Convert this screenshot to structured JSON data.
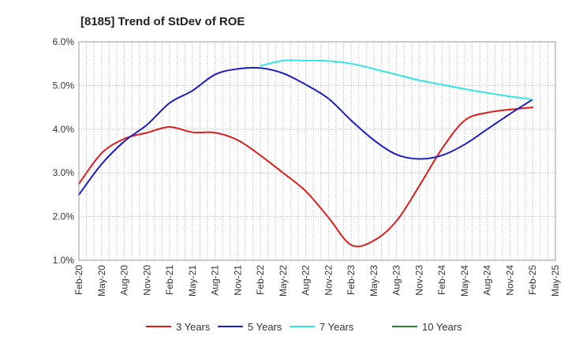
{
  "chart_data": {
    "type": "line",
    "title": "[8185]  Trend of StDev of ROE",
    "xlabel": "",
    "ylabel": "",
    "ylim": [
      1.0,
      6.0
    ],
    "y_ticks": [
      "1.0%",
      "2.0%",
      "3.0%",
      "4.0%",
      "5.0%",
      "6.0%"
    ],
    "x_ticks": [
      "Feb-20",
      "May-20",
      "Aug-20",
      "Nov-20",
      "Feb-21",
      "May-21",
      "Aug-21",
      "Nov-21",
      "Feb-22",
      "May-22",
      "Aug-22",
      "Nov-22",
      "Feb-23",
      "May-23",
      "Aug-23",
      "Nov-23",
      "Feb-24",
      "May-24",
      "Aug-24",
      "Nov-24",
      "Feb-25",
      "May-25"
    ],
    "grid": true,
    "legend_position": "bottom",
    "series": [
      {
        "name": "3 Years",
        "color": "#dd1c1c",
        "points": [
          [
            "Feb-20",
            2.75
          ],
          [
            "May-20",
            3.45
          ],
          [
            "Aug-20",
            3.78
          ],
          [
            "Nov-20",
            3.92
          ],
          [
            "Feb-21",
            4.05
          ],
          [
            "May-21",
            3.93
          ],
          [
            "Aug-21",
            3.92
          ],
          [
            "Nov-21",
            3.75
          ],
          [
            "Feb-22",
            3.4
          ],
          [
            "May-22",
            3.0
          ],
          [
            "Aug-22",
            2.58
          ],
          [
            "Nov-22",
            1.98
          ],
          [
            "Feb-23",
            1.35
          ],
          [
            "May-23",
            1.45
          ],
          [
            "Aug-23",
            1.9
          ],
          [
            "Nov-23",
            2.7
          ],
          [
            "Feb-24",
            3.55
          ],
          [
            "May-24",
            4.2
          ],
          [
            "Aug-24",
            4.38
          ],
          [
            "Nov-24",
            4.45
          ],
          [
            "Feb-25",
            4.5
          ]
        ]
      },
      {
        "name": "5 Years",
        "color": "#1c1cc8",
        "points": [
          [
            "Feb-20",
            2.5
          ],
          [
            "May-20",
            3.2
          ],
          [
            "Aug-20",
            3.72
          ],
          [
            "Nov-20",
            4.1
          ],
          [
            "Feb-21",
            4.6
          ],
          [
            "May-21",
            4.88
          ],
          [
            "Aug-21",
            5.25
          ],
          [
            "Nov-21",
            5.38
          ],
          [
            "Feb-22",
            5.4
          ],
          [
            "May-22",
            5.28
          ],
          [
            "Aug-22",
            5.02
          ],
          [
            "Nov-22",
            4.7
          ],
          [
            "Feb-23",
            4.2
          ],
          [
            "May-23",
            3.75
          ],
          [
            "Aug-23",
            3.42
          ],
          [
            "Nov-23",
            3.32
          ],
          [
            "Feb-24",
            3.4
          ],
          [
            "May-24",
            3.65
          ],
          [
            "Aug-24",
            4.0
          ],
          [
            "Nov-24",
            4.35
          ],
          [
            "Feb-25",
            4.68
          ]
        ]
      },
      {
        "name": "7 Years",
        "color": "#33e5e5",
        "points": [
          [
            "Feb-22",
            5.45
          ],
          [
            "May-22",
            5.57
          ],
          [
            "Aug-22",
            5.57
          ],
          [
            "Nov-22",
            5.56
          ],
          [
            "Feb-23",
            5.5
          ],
          [
            "May-23",
            5.38
          ],
          [
            "Aug-23",
            5.25
          ],
          [
            "Nov-23",
            5.12
          ],
          [
            "Feb-24",
            5.02
          ],
          [
            "May-24",
            4.92
          ],
          [
            "Aug-24",
            4.83
          ],
          [
            "Nov-24",
            4.75
          ],
          [
            "Feb-25",
            4.68
          ]
        ]
      },
      {
        "name": "10 Years",
        "color": "#2a8a2a",
        "points": []
      }
    ]
  }
}
